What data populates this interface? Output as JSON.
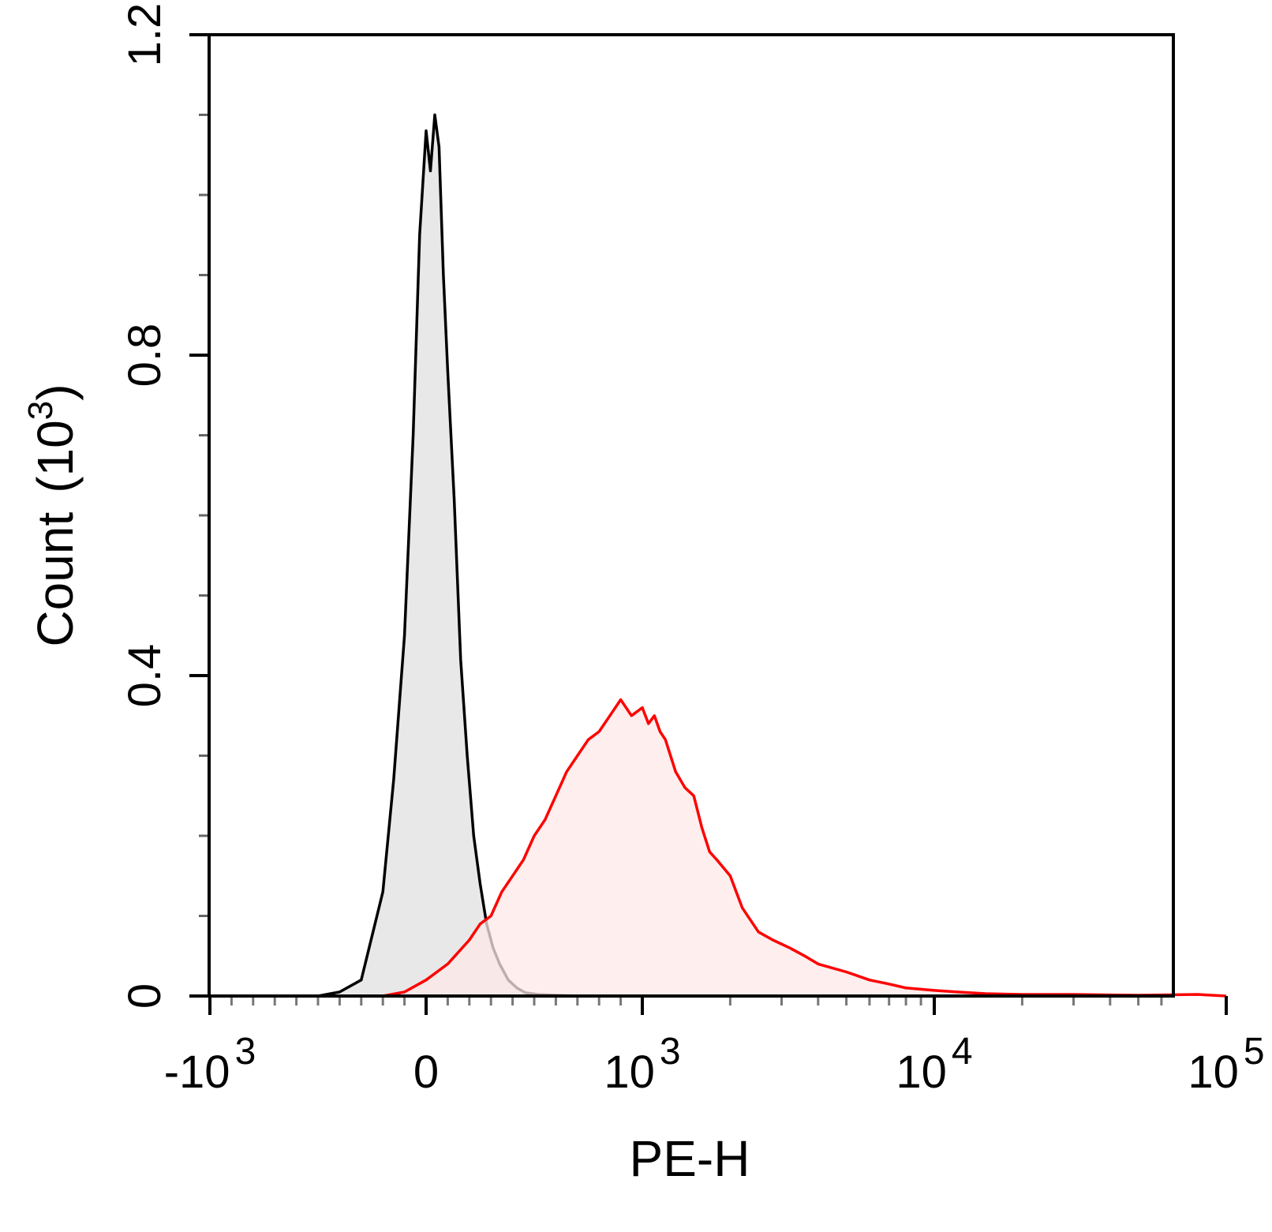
{
  "chart_data": {
    "type": "area",
    "xlabel": "PE-H",
    "ylabel": "Count",
    "ylabel_exp_base": "(10",
    "ylabel_exp": "3",
    "ylabel_close": ")",
    "x_scale": "biexponential",
    "xlim": [
      -1000,
      100000
    ],
    "ylim": [
      0,
      1.2
    ],
    "y_ticks": [
      {
        "value": 0,
        "label": "0"
      },
      {
        "value": 0.4,
        "label": "0.4"
      },
      {
        "value": 0.8,
        "label": "0.8"
      },
      {
        "value": 1.2,
        "label": "1.2"
      }
    ],
    "x_ticks": [
      {
        "value": -1000,
        "base": "-10",
        "exp": "3"
      },
      {
        "value": 0,
        "base": "0",
        "exp": ""
      },
      {
        "value": 1000,
        "base": "10",
        "exp": "3"
      },
      {
        "value": 10000,
        "base": "10",
        "exp": "4"
      },
      {
        "value": 100000,
        "base": "10",
        "exp": "5"
      }
    ],
    "grid": false,
    "legend": "none",
    "series": [
      {
        "color": "#000000",
        "fill": "#e8e8e8",
        "x": [
          -500,
          -400,
          -300,
          -200,
          -150,
          -100,
          -60,
          -30,
          0,
          20,
          40,
          60,
          80,
          100,
          130,
          160,
          190,
          220,
          250,
          280,
          310,
          340,
          380,
          420,
          460,
          520,
          600,
          700
        ],
        "y": [
          0,
          0.005,
          0.02,
          0.13,
          0.27,
          0.45,
          0.7,
          0.95,
          1.08,
          1.03,
          1.1,
          1.06,
          0.9,
          0.78,
          0.62,
          0.42,
          0.3,
          0.2,
          0.14,
          0.09,
          0.06,
          0.04,
          0.02,
          0.01,
          0.004,
          0.002,
          0.001,
          0
        ]
      },
      {
        "color": "#ff0000",
        "fill": "#fde8e8",
        "x": [
          -200,
          -100,
          0,
          100,
          200,
          250,
          300,
          350,
          400,
          450,
          500,
          550,
          600,
          650,
          700,
          750,
          800,
          850,
          900,
          950,
          1000,
          1050,
          1100,
          1150,
          1200,
          1300,
          1400,
          1500,
          1600,
          1700,
          1800,
          2000,
          2200,
          2500,
          2800,
          3200,
          3600,
          4000,
          5000,
          6000,
          7000,
          8000,
          10000,
          12000,
          15000,
          20000,
          30000,
          50000,
          80000,
          100000
        ],
        "y": [
          0,
          0.005,
          0.02,
          0.04,
          0.07,
          0.09,
          0.1,
          0.13,
          0.15,
          0.17,
          0.2,
          0.22,
          0.25,
          0.28,
          0.3,
          0.32,
          0.33,
          0.35,
          0.37,
          0.35,
          0.36,
          0.34,
          0.35,
          0.33,
          0.32,
          0.28,
          0.26,
          0.25,
          0.21,
          0.18,
          0.17,
          0.15,
          0.11,
          0.08,
          0.07,
          0.06,
          0.05,
          0.04,
          0.03,
          0.02,
          0.015,
          0.01,
          0.007,
          0.005,
          0.003,
          0.002,
          0.002,
          0.001,
          0.002,
          0
        ]
      }
    ]
  }
}
